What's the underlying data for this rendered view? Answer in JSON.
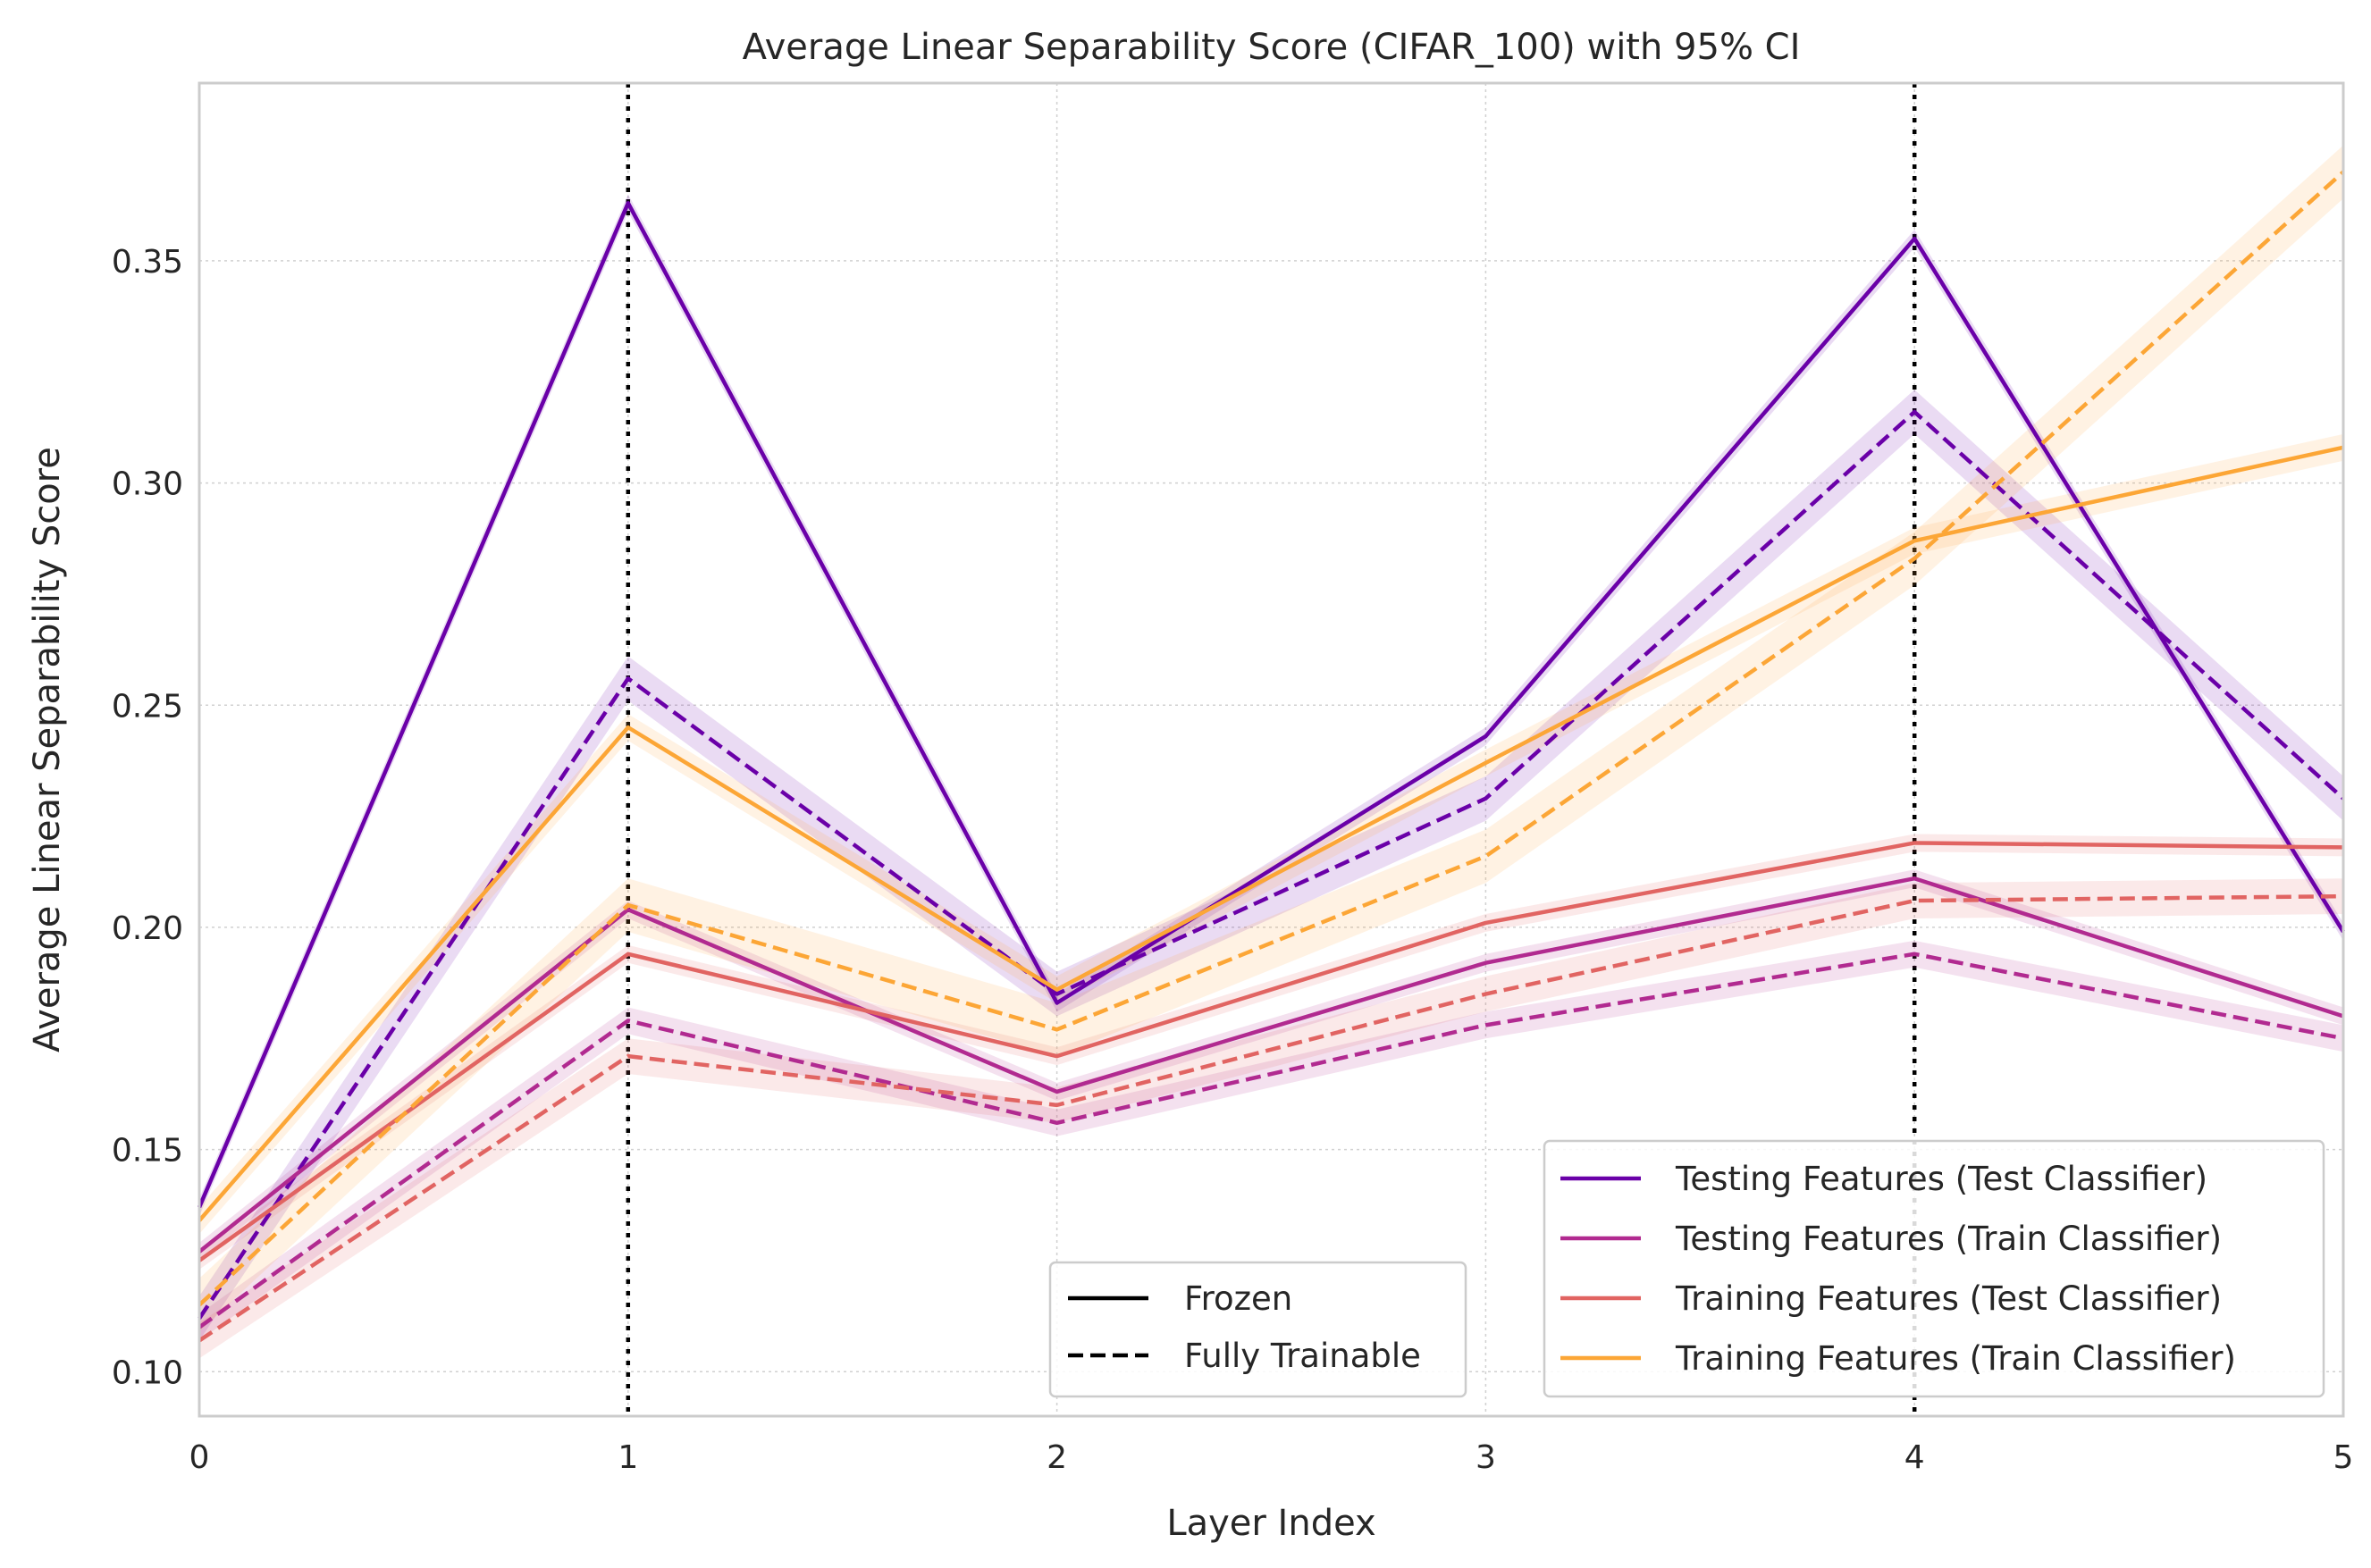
{
  "chart_data": {
    "type": "line",
    "title": "Average Linear Separability Score (CIFAR_100) with 95% CI",
    "xlabel": "Layer Index",
    "ylabel": "Average Linear Separability Score",
    "x": [
      0,
      1,
      2,
      3,
      4,
      5
    ],
    "x_ticks": [
      "0",
      "1",
      "2",
      "3",
      "4",
      "5"
    ],
    "y_ticks": [
      "0.10",
      "0.15",
      "0.20",
      "0.25",
      "0.30",
      "0.35"
    ],
    "xlim": [
      0,
      5
    ],
    "ylim": [
      0.09,
      0.39
    ],
    "grid": true,
    "vertical_markers": [
      1,
      4
    ],
    "series": [
      {
        "name": "Testing Features (Test Classifier)",
        "style": "Frozen",
        "color": "#6a00a8",
        "values": [
          0.137,
          0.363,
          0.183,
          0.243,
          0.355,
          0.199
        ],
        "ci": 0.002
      },
      {
        "name": "Testing Features (Test Classifier)",
        "style": "Fully Trainable",
        "color": "#6a00a8",
        "values": [
          0.112,
          0.256,
          0.185,
          0.229,
          0.316,
          0.229
        ],
        "ci": 0.005
      },
      {
        "name": "Testing Features (Train Classifier)",
        "style": "Frozen",
        "color": "#b12a90",
        "values": [
          0.127,
          0.204,
          0.163,
          0.192,
          0.211,
          0.18
        ],
        "ci": 0.002
      },
      {
        "name": "Testing Features (Train Classifier)",
        "style": "Fully Trainable",
        "color": "#b12a90",
        "values": [
          0.11,
          0.179,
          0.156,
          0.178,
          0.194,
          0.175
        ],
        "ci": 0.003
      },
      {
        "name": "Training Features (Test Classifier)",
        "style": "Frozen",
        "color": "#e16462",
        "values": [
          0.125,
          0.194,
          0.171,
          0.201,
          0.219,
          0.218
        ],
        "ci": 0.002
      },
      {
        "name": "Training Features (Test Classifier)",
        "style": "Fully Trainable",
        "color": "#e16462",
        "values": [
          0.107,
          0.171,
          0.16,
          0.185,
          0.206,
          0.207
        ],
        "ci": 0.004
      },
      {
        "name": "Training Features (Train Classifier)",
        "style": "Frozen",
        "color": "#fca636",
        "values": [
          0.134,
          0.245,
          0.186,
          0.237,
          0.287,
          0.308
        ],
        "ci": 0.003
      },
      {
        "name": "Training Features (Train Classifier)",
        "style": "Fully Trainable",
        "color": "#fca636",
        "values": [
          0.115,
          0.205,
          0.177,
          0.216,
          0.283,
          0.37
        ],
        "ci": 0.006
      }
    ],
    "legend_style": {
      "placement": "lower-center",
      "entries": [
        {
          "label": "Frozen",
          "dash": "solid"
        },
        {
          "label": "Fully Trainable",
          "dash": "dashed"
        }
      ]
    },
    "legend_series": {
      "placement": "lower-right",
      "entries": [
        {
          "label": "Testing Features (Test Classifier)",
          "color": "#6a00a8"
        },
        {
          "label": "Testing Features (Train Classifier)",
          "color": "#b12a90"
        },
        {
          "label": "Training Features (Test Classifier)",
          "color": "#e16462"
        },
        {
          "label": "Training Features (Train Classifier)",
          "color": "#fca636"
        }
      ]
    }
  }
}
